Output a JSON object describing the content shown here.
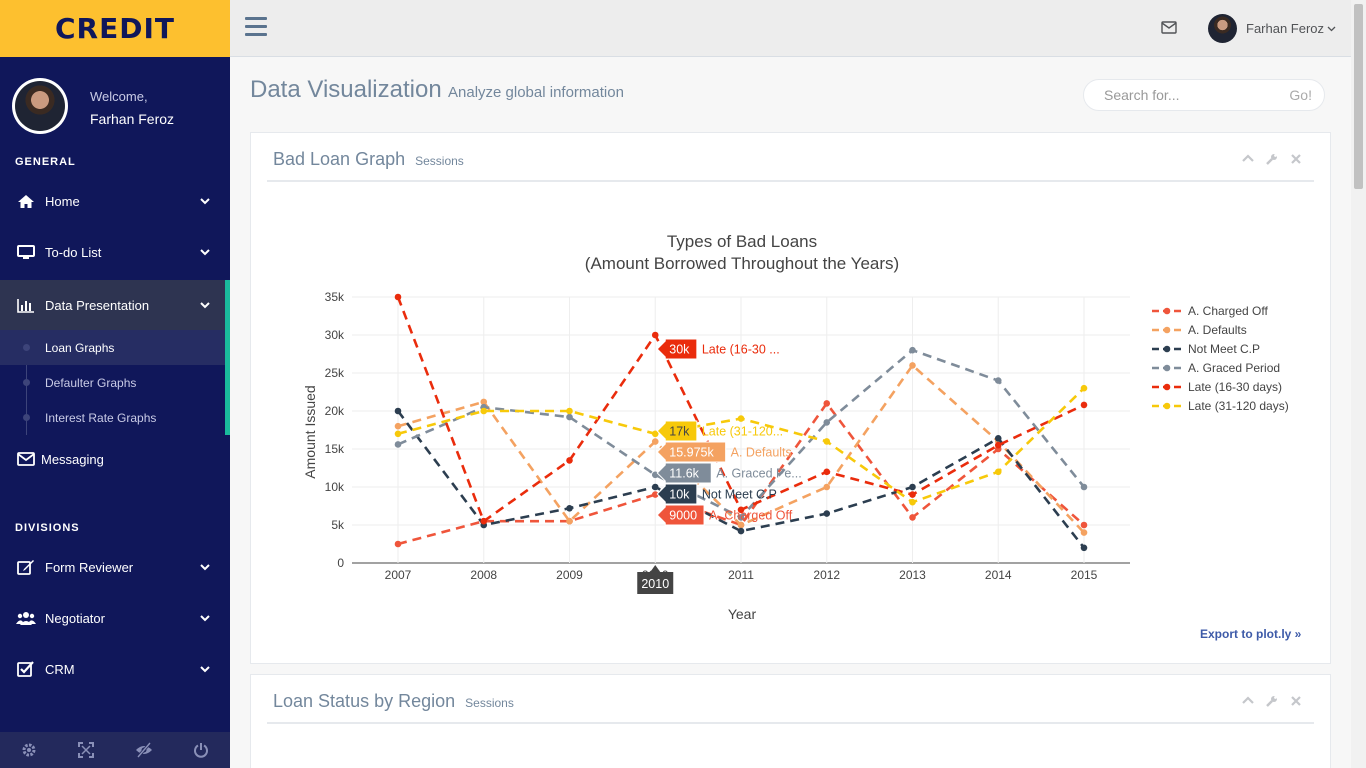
{
  "brand": {
    "name": "CREDIT"
  },
  "profile": {
    "welcome": "Welcome,",
    "name": "Farhan Feroz"
  },
  "sidebar": {
    "general_title": "GENERAL",
    "divisions_title": "DIVISIONS",
    "items": [
      {
        "label": "Home",
        "icon": "home-icon"
      },
      {
        "label": "To-do List",
        "icon": "desktop-icon"
      },
      {
        "label": "Data Presentation",
        "icon": "bar-chart-icon"
      },
      {
        "label": "Messaging",
        "icon": "envelope-icon"
      },
      {
        "label": "Form Reviewer",
        "icon": "edit-icon"
      },
      {
        "label": "Negotiator",
        "icon": "users-icon"
      },
      {
        "label": "CRM",
        "icon": "check-square-icon"
      }
    ],
    "sub_items": [
      {
        "label": "Loan Graphs"
      },
      {
        "label": "Defaulter Graphs"
      },
      {
        "label": "Interest Rate Graphs"
      }
    ],
    "footer_icons": [
      "settings-icon",
      "fullscreen-icon",
      "eye-slash-icon",
      "power-icon"
    ]
  },
  "topnav": {
    "user": "Farhan Feroz"
  },
  "page": {
    "title": "Data Visualization",
    "subtitle": "Analyze global information"
  },
  "search": {
    "placeholder": "Search for...",
    "button": "Go!"
  },
  "panels": [
    {
      "title": "Bad Loan Graph",
      "small": "Sessions"
    },
    {
      "title": "Loan Status by Region",
      "small": "Sessions"
    }
  ],
  "export_label": "Export to plot.ly »",
  "colors": {
    "sidebar": "#10175a",
    "brand": "#fdc02f",
    "accent": "#1abb9c"
  },
  "chart_data": {
    "type": "line",
    "title": "Types of Bad Loans",
    "subtitle": "(Amount Borrowed Throughout the Years)",
    "xlabel": "Year",
    "ylabel": "Amount Issued",
    "x": [
      2007,
      2008,
      2009,
      2010,
      2011,
      2012,
      2013,
      2014,
      2015
    ],
    "ylim": [
      0,
      35000
    ],
    "yticks": [
      0,
      5000,
      10000,
      15000,
      20000,
      25000,
      30000,
      35000
    ],
    "ytick_labels": [
      "0",
      "5k",
      "10k",
      "15k",
      "20k",
      "25k",
      "30k",
      "35k"
    ],
    "grid": true,
    "legend_position": "right",
    "series": [
      {
        "name": "A. Charged Off",
        "color": "#ef553b",
        "values": [
          2500,
          5500,
          5500,
          9000,
          5000,
          21000,
          6000,
          15000,
          5000
        ]
      },
      {
        "name": "A. Defaults",
        "color": "#f4a261",
        "values": [
          18000,
          21200,
          5500,
          15975,
          5000,
          10000,
          26000,
          16000,
          4000
        ]
      },
      {
        "name": "Not Meet C.P",
        "color": "#2c3e50",
        "values": [
          20000,
          5000,
          7200,
          10000,
          4200,
          6500,
          10000,
          16400,
          2000
        ]
      },
      {
        "name": "A. Graced Period",
        "color": "#7f8c9a",
        "values": [
          15600,
          20500,
          19200,
          11600,
          6000,
          18500,
          28000,
          24000,
          10000
        ]
      },
      {
        "name": "Late (16-30 days)",
        "color": "#ea2c0c",
        "values": [
          35000,
          5500,
          13500,
          30000,
          7000,
          12000,
          9000,
          15500,
          20800
        ]
      },
      {
        "name": "Late (31-120 days)",
        "color": "#f7c90a",
        "values": [
          17000,
          20000,
          20000,
          17000,
          19000,
          16000,
          8000,
          12000,
          23000
        ]
      }
    ],
    "hover": {
      "x_label": "2010",
      "labels": [
        {
          "series": 4,
          "value": "30k",
          "text": "Late (16-30 ..."
        },
        {
          "series": 5,
          "value": "17k",
          "text": "Late (31-120..."
        },
        {
          "series": 1,
          "value": "15.975k",
          "text": "A. Defaults"
        },
        {
          "series": 3,
          "value": "11.6k",
          "text": "A. Graced Pe..."
        },
        {
          "series": 2,
          "value": "10k",
          "text": "Not Meet C.P"
        },
        {
          "series": 0,
          "value": "9000",
          "text": "A. Charged Off"
        }
      ]
    }
  }
}
